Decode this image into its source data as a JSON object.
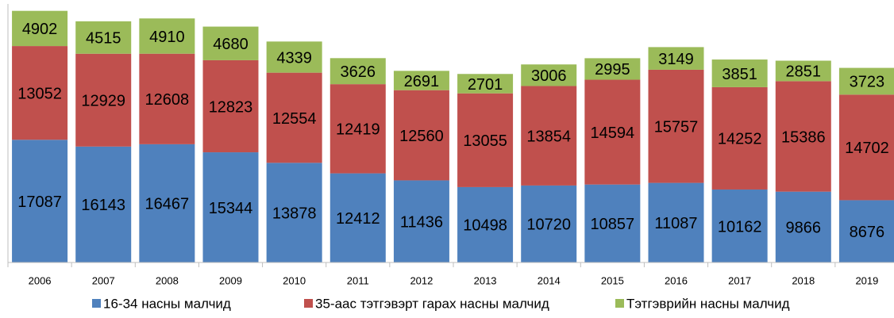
{
  "chart_data": {
    "type": "stacked_bar",
    "categories": [
      "2006",
      "2007",
      "2008",
      "2009",
      "2010",
      "2011",
      "2012",
      "2013",
      "2014",
      "2015",
      "2016",
      "2017",
      "2018",
      "2019"
    ],
    "series": [
      {
        "name": "16-34 насны малчид",
        "color": "#4f81bd",
        "values": [
          17087,
          16143,
          16467,
          15344,
          13878,
          12412,
          11436,
          10498,
          10720,
          10857,
          11087,
          10162,
          9866,
          8676
        ]
      },
      {
        "name": "35-аас тэтгэвэрт гарах насны малчид",
        "color": "#c0504d",
        "values": [
          13052,
          12929,
          12608,
          12823,
          12554,
          12419,
          12560,
          13055,
          13854,
          14594,
          15757,
          14252,
          15386,
          14702
        ]
      },
      {
        "name": "Тэтгэврийн насны малчид",
        "color": "#9bbb59",
        "values": [
          4902,
          4515,
          4910,
          4680,
          4339,
          3626,
          2691,
          2701,
          3006,
          2995,
          3149,
          3851,
          2851,
          3723
        ]
      }
    ],
    "ylim": [
      0,
      36000
    ]
  }
}
